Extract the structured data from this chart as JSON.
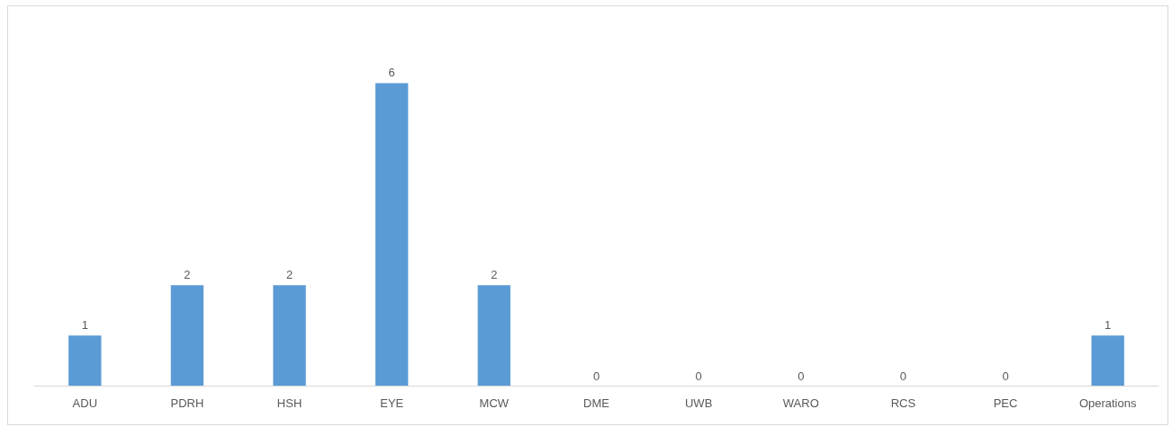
{
  "chart_data": {
    "type": "bar",
    "categories": [
      "ADU",
      "PDRH",
      "HSH",
      "EYE",
      "MCW",
      "DME",
      "UWB",
      "WARO",
      "RCS",
      "PEC",
      "Operations"
    ],
    "values": [
      1,
      2,
      2,
      6,
      2,
      0,
      0,
      0,
      0,
      0,
      1
    ],
    "color": "#5b9bd5",
    "data_labels": true
  }
}
